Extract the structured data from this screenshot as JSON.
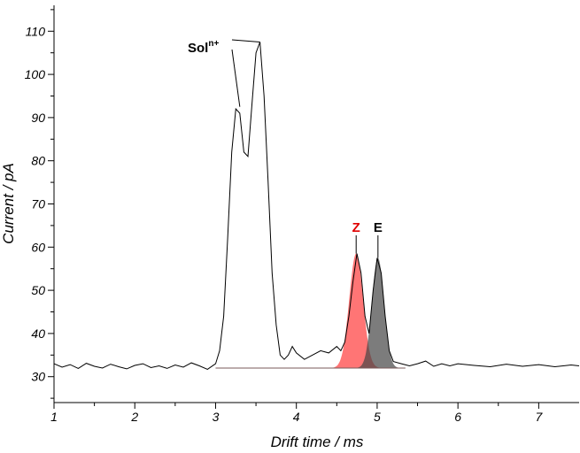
{
  "chart_data": {
    "type": "line",
    "title": "",
    "xlabel": "Drift time / ms",
    "ylabel": "Current / pA",
    "xlim": [
      1,
      7.5
    ],
    "ylim": [
      24,
      116
    ],
    "x_ticks": [
      "1",
      "2",
      "3",
      "4",
      "5",
      "6",
      "7"
    ],
    "y_ticks": [
      "30",
      "40",
      "50",
      "60",
      "70",
      "80",
      "90",
      "100",
      "110"
    ],
    "grid": false,
    "baseline": 32,
    "series": [
      {
        "color": "#000000",
        "x": [
          1.0,
          1.1,
          1.2,
          1.3,
          1.4,
          1.5,
          1.6,
          1.7,
          1.8,
          1.9,
          2.0,
          2.1,
          2.2,
          2.3,
          2.4,
          2.5,
          2.6,
          2.7,
          2.8,
          2.9,
          3.0,
          3.05,
          3.1,
          3.15,
          3.2,
          3.25,
          3.3,
          3.35,
          3.4,
          3.45,
          3.5,
          3.55,
          3.6,
          3.65,
          3.7,
          3.75,
          3.8,
          3.85,
          3.9,
          3.95,
          4.0,
          4.1,
          4.2,
          4.3,
          4.4,
          4.5,
          4.55,
          4.6,
          4.65,
          4.7,
          4.75,
          4.8,
          4.85,
          4.9,
          4.95,
          5.0,
          5.05,
          5.1,
          5.15,
          5.2,
          5.3,
          5.4,
          5.5,
          5.6,
          5.7,
          5.8,
          5.9,
          6.0,
          6.2,
          6.4,
          6.6,
          6.8,
          7.0,
          7.2,
          7.4,
          7.5
        ],
        "y": [
          33.0,
          32.2,
          32.8,
          31.9,
          33.1,
          32.4,
          32.0,
          32.9,
          32.3,
          31.8,
          32.6,
          33.0,
          32.1,
          32.5,
          31.9,
          32.7,
          32.2,
          33.2,
          32.5,
          31.7,
          33.0,
          36.0,
          44.0,
          62.0,
          82.0,
          92.0,
          91.0,
          82.0,
          81.0,
          93.0,
          105.0,
          107.5,
          95.0,
          75.0,
          54.0,
          42.0,
          35.0,
          34.0,
          35.0,
          37.0,
          35.5,
          34.0,
          35.0,
          36.0,
          35.5,
          37.0,
          36.0,
          38.0,
          44.0,
          52.0,
          58.5,
          54.0,
          44.0,
          40.0,
          50.0,
          57.5,
          54.0,
          44.0,
          36.0,
          33.5,
          33.0,
          32.5,
          33.0,
          33.6,
          32.4,
          33.0,
          32.5,
          33.0,
          32.6,
          32.3,
          32.9,
          32.4,
          32.8,
          32.3,
          32.7,
          32.5
        ]
      }
    ],
    "peaks": [
      {
        "label": "Z",
        "center": 4.74,
        "height": 58.5,
        "width": 0.085,
        "color": "#ff3b3b"
      },
      {
        "label": "E",
        "center": 5.01,
        "height": 57.5,
        "width": 0.075,
        "color": "#444444"
      }
    ],
    "annotations": [
      {
        "label": "Sol",
        "superscript": "n+",
        "x1": 3.3,
        "y1": 92.5,
        "x2": 3.55,
        "y2": 107.5
      }
    ]
  }
}
